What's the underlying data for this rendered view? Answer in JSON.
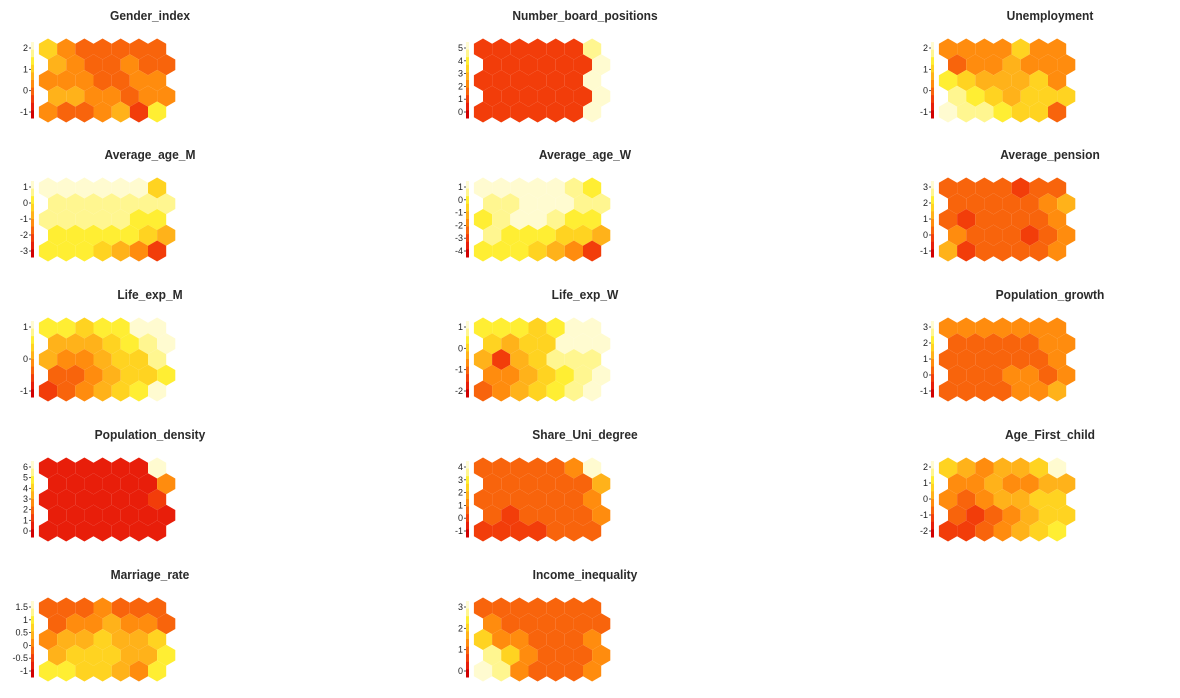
{
  "chart_data": [
    {
      "type": "heatmap",
      "title": "Gender_index",
      "ticks": [
        "2",
        "1",
        "0",
        "-1"
      ],
      "values": [
        [
          6,
          4,
          3,
          3,
          3,
          3,
          3
        ],
        [
          5,
          4,
          3,
          3,
          4,
          3,
          3
        ],
        [
          4,
          4,
          4,
          3,
          3,
          4,
          4
        ],
        [
          5,
          5,
          4,
          4,
          3,
          4,
          4
        ],
        [
          4,
          3,
          3,
          4,
          5,
          2,
          7
        ]
      ]
    },
    {
      "type": "heatmap",
      "title": "Number_board_positions",
      "ticks": [
        "5",
        "4",
        "3",
        "2",
        "1",
        "0"
      ],
      "values": [
        [
          2,
          2,
          2,
          2,
          2,
          2,
          8
        ],
        [
          2,
          2,
          2,
          2,
          2,
          2,
          9
        ],
        [
          2,
          2,
          2,
          2,
          2,
          2,
          9
        ],
        [
          2,
          2,
          2,
          2,
          2,
          2,
          9
        ],
        [
          2,
          2,
          2,
          2,
          2,
          2,
          9
        ]
      ]
    },
    {
      "type": "heatmap",
      "title": "Unemployment",
      "ticks": [
        "2",
        "1",
        "0",
        "-1"
      ],
      "values": [
        [
          4,
          4,
          4,
          4,
          6,
          4,
          4
        ],
        [
          3,
          4,
          4,
          5,
          4,
          4,
          4
        ],
        [
          7,
          6,
          5,
          5,
          5,
          6,
          4
        ],
        [
          8,
          7,
          6,
          5,
          6,
          6,
          6
        ],
        [
          9,
          8,
          8,
          7,
          6,
          6,
          3
        ]
      ]
    },
    {
      "type": "heatmap",
      "title": "Average_age_M",
      "ticks": [
        "1",
        "0",
        "-1",
        "-2",
        "-3"
      ],
      "values": [
        [
          9,
          9,
          9,
          9,
          9,
          9,
          6
        ],
        [
          8,
          8,
          8,
          8,
          8,
          8,
          8
        ],
        [
          8,
          8,
          8,
          8,
          8,
          7,
          7
        ],
        [
          7,
          7,
          7,
          7,
          7,
          6,
          5
        ],
        [
          7,
          7,
          7,
          6,
          5,
          4,
          2
        ]
      ]
    },
    {
      "type": "heatmap",
      "title": "Average_age_W",
      "ticks": [
        "1",
        "0",
        "-1",
        "-2",
        "-3",
        "-4"
      ],
      "values": [
        [
          9,
          9,
          9,
          9,
          9,
          8,
          7
        ],
        [
          8,
          8,
          9,
          9,
          9,
          8,
          8
        ],
        [
          7,
          8,
          9,
          9,
          8,
          7,
          7
        ],
        [
          8,
          7,
          7,
          7,
          6,
          6,
          5
        ],
        [
          7,
          7,
          7,
          6,
          5,
          4,
          2
        ]
      ]
    },
    {
      "type": "heatmap",
      "title": "Average_pension",
      "ticks": [
        "3",
        "2",
        "1",
        "0",
        "-1"
      ],
      "values": [
        [
          3,
          3,
          3,
          3,
          2,
          3,
          3
        ],
        [
          3,
          3,
          3,
          3,
          3,
          4,
          5
        ],
        [
          3,
          2,
          3,
          3,
          3,
          3,
          4
        ],
        [
          4,
          3,
          3,
          3,
          2,
          3,
          4
        ],
        [
          5,
          2,
          3,
          3,
          3,
          3,
          4
        ]
      ]
    },
    {
      "type": "heatmap",
      "title": "Life_exp_M",
      "ticks": [
        "1",
        "0",
        "-1"
      ],
      "values": [
        [
          7,
          7,
          6,
          7,
          7,
          9,
          9
        ],
        [
          5,
          5,
          5,
          6,
          7,
          8,
          9
        ],
        [
          5,
          4,
          4,
          5,
          6,
          6,
          8
        ],
        [
          3,
          3,
          4,
          5,
          6,
          6,
          7
        ],
        [
          2,
          3,
          4,
          5,
          6,
          7,
          9
        ]
      ]
    },
    {
      "type": "heatmap",
      "title": "Life_exp_W",
      "ticks": [
        "1",
        "0",
        "-1",
        "-2"
      ],
      "values": [
        [
          7,
          7,
          7,
          6,
          7,
          9,
          9
        ],
        [
          6,
          5,
          6,
          6,
          9,
          9,
          9
        ],
        [
          5,
          2,
          5,
          6,
          8,
          8,
          8
        ],
        [
          4,
          4,
          5,
          6,
          7,
          8,
          9
        ],
        [
          3,
          4,
          5,
          6,
          7,
          8,
          9
        ]
      ]
    },
    {
      "type": "heatmap",
      "title": "Population_growth",
      "ticks": [
        "3",
        "2",
        "1",
        "0",
        "-1"
      ],
      "values": [
        [
          4,
          4,
          4,
          4,
          4,
          4,
          4
        ],
        [
          3,
          3,
          3,
          3,
          3,
          4,
          4
        ],
        [
          3,
          3,
          3,
          3,
          3,
          3,
          4
        ],
        [
          3,
          3,
          3,
          4,
          4,
          3,
          4
        ],
        [
          3,
          3,
          3,
          3,
          4,
          4,
          5
        ]
      ]
    },
    {
      "type": "heatmap",
      "title": "Population_density",
      "ticks": [
        "6",
        "5",
        "4",
        "3",
        "2",
        "1",
        "0"
      ],
      "values": [
        [
          1,
          1,
          1,
          1,
          1,
          1,
          9
        ],
        [
          1,
          1,
          1,
          1,
          1,
          1,
          4
        ],
        [
          1,
          1,
          1,
          1,
          1,
          1,
          2
        ],
        [
          1,
          1,
          1,
          1,
          1,
          1,
          1
        ],
        [
          1,
          1,
          1,
          1,
          1,
          1,
          1
        ]
      ]
    },
    {
      "type": "heatmap",
      "title": "Share_Uni_degree",
      "ticks": [
        "4",
        "3",
        "2",
        "1",
        "0",
        "-1"
      ],
      "values": [
        [
          3,
          3,
          3,
          3,
          3,
          4,
          9
        ],
        [
          3,
          3,
          3,
          3,
          3,
          3,
          5
        ],
        [
          3,
          3,
          3,
          3,
          3,
          3,
          4
        ],
        [
          3,
          2,
          3,
          3,
          3,
          3,
          4
        ],
        [
          2,
          2,
          2,
          2,
          3,
          3,
          3
        ]
      ]
    },
    {
      "type": "heatmap",
      "title": "Age_First_child",
      "ticks": [
        "2",
        "1",
        "0",
        "-1",
        "-2"
      ],
      "values": [
        [
          6,
          5,
          4,
          5,
          5,
          6,
          9
        ],
        [
          4,
          4,
          5,
          4,
          4,
          5,
          5
        ],
        [
          4,
          3,
          4,
          5,
          5,
          6,
          6
        ],
        [
          3,
          2,
          3,
          4,
          5,
          6,
          6
        ],
        [
          2,
          2,
          3,
          4,
          5,
          6,
          7
        ]
      ]
    },
    {
      "type": "heatmap",
      "title": "Marriage_rate",
      "ticks": [
        "1.5",
        "1",
        "0.5",
        "0",
        "-0.5",
        "-1"
      ],
      "values": [
        [
          3,
          3,
          3,
          4,
          3,
          3,
          3
        ],
        [
          3,
          4,
          4,
          5,
          4,
          4,
          3
        ],
        [
          4,
          5,
          5,
          6,
          5,
          5,
          6
        ],
        [
          5,
          6,
          6,
          6,
          5,
          5,
          7
        ],
        [
          7,
          7,
          6,
          6,
          5,
          4,
          7
        ]
      ]
    },
    {
      "type": "heatmap",
      "title": "Income_inequality",
      "ticks": [
        "3",
        "2",
        "1",
        "0"
      ],
      "values": [
        [
          3,
          3,
          3,
          3,
          3,
          3,
          3
        ],
        [
          4,
          3,
          3,
          3,
          3,
          3,
          3
        ],
        [
          6,
          4,
          4,
          3,
          3,
          3,
          4
        ],
        [
          8,
          6,
          4,
          3,
          3,
          3,
          4
        ],
        [
          9,
          8,
          4,
          3,
          3,
          3,
          4
        ]
      ]
    }
  ],
  "palette": [
    "#d10000",
    "#e81e0a",
    "#f23d0a",
    "#f8640c",
    "#ff8c0e",
    "#ffb21a",
    "#ffd321",
    "#ffee33",
    "#fff690",
    "#fffbd0"
  ]
}
